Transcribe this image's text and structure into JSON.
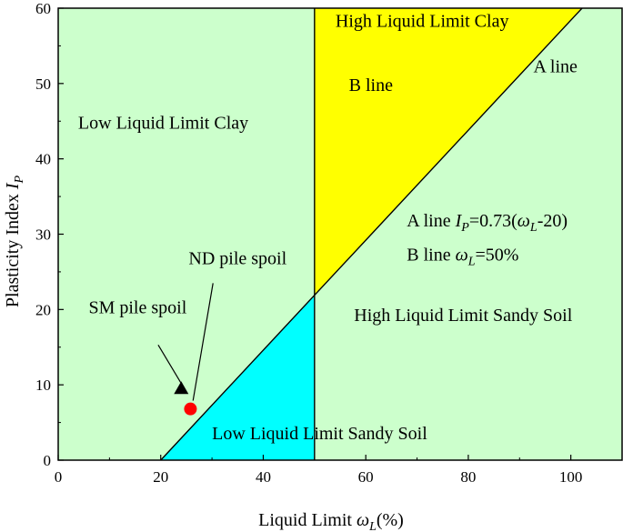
{
  "chart_data": {
    "type": "scatter",
    "title": "",
    "xlabel": "Liquid Limit ωL(%)",
    "xlabel_parts": {
      "main": "Liquid Limit ",
      "sym": "ω",
      "sub": "L",
      "tail": "(%)"
    },
    "ylabel": "Plasticity Index IP",
    "ylabel_parts": {
      "main": "Plasticity Index ",
      "sym": "I",
      "sub": "P"
    },
    "xlim": [
      0,
      110
    ],
    "ylim": [
      0,
      60
    ],
    "xticks": [
      0,
      20,
      40,
      60,
      80,
      100
    ],
    "yticks": [
      0,
      10,
      20,
      30,
      40,
      50,
      60
    ],
    "grid": false,
    "a_line": {
      "slope": 0.73,
      "intercept_x": 20
    },
    "b_line": {
      "x": 50
    },
    "regions": [
      {
        "name": "Low Liquid Limit Clay",
        "label": "Low Liquid Limit Clay",
        "color": "#ccffcc",
        "label_pos": [
          20.5,
          44
        ]
      },
      {
        "name": "High Liquid Limit Clay",
        "label": "High Liquid Limit Clay",
        "color": "#ffff00",
        "label_pos": [
          71,
          57.5
        ]
      },
      {
        "name": "Low Liquid Limit Sandy Soil",
        "label": "Low Liquid Limit Sandy Soil",
        "color": "#00ffff",
        "label_pos": [
          51,
          2.8
        ]
      },
      {
        "name": "High Liquid Limit Sandy Soil",
        "label": "High Liquid Limit Sandy Soil",
        "color": "#ccffcc",
        "label_pos": [
          79,
          18.5
        ]
      }
    ],
    "line_labels": [
      {
        "text": "A line",
        "pos": [
          97,
          51.5
        ]
      },
      {
        "text": "B line",
        "pos": [
          61,
          49
        ]
      }
    ],
    "equations": {
      "a_line": {
        "prefix": "A line ",
        "sym": "I",
        "sub": "P",
        "mid": "=0.73(",
        "sym2": "ω",
        "sub2": "L",
        "tail": "-20)",
        "pos": [
          68,
          31
        ]
      },
      "b_line": {
        "prefix": "B line ",
        "sym": "ω",
        "sub": "L",
        "tail": "=50%",
        "pos": [
          68,
          26.5
        ]
      }
    },
    "series": [
      {
        "name": "SM pile spoil",
        "x": [
          24
        ],
        "y": [
          9.5
        ],
        "marker": "triangle",
        "color": "#000000"
      },
      {
        "name": "ND pile spoil",
        "x": [
          25.8
        ],
        "y": [
          6.8
        ],
        "marker": "circle",
        "color": "#ff0000"
      }
    ],
    "annotations": [
      {
        "text": "SM pile spoil",
        "text_pos": [
          15.5,
          19.5
        ],
        "point": [
          23.9,
          10.3
        ],
        "from": [
          19.5,
          15.3
        ]
      },
      {
        "text": "ND pile spoil",
        "text_pos": [
          35,
          26
        ],
        "point": [
          26.3,
          7.9
        ],
        "from": [
          30.2,
          23.5
        ]
      }
    ]
  }
}
